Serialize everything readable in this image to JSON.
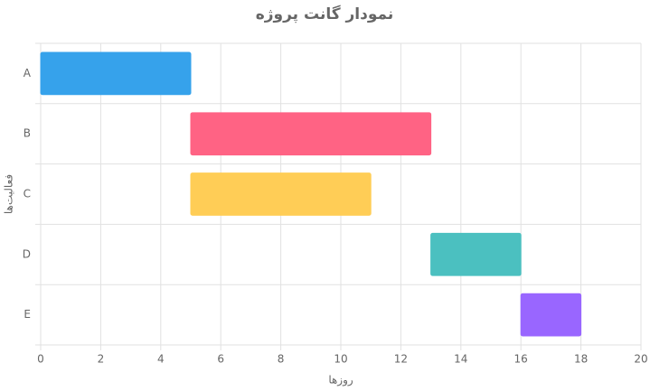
{
  "chart_data": {
    "type": "gantt",
    "title": "نمودار گانت پروژه",
    "x_label": "روزها",
    "y_label": "فعالیت‌ها",
    "categories": [
      "A",
      "B",
      "C",
      "D",
      "E"
    ],
    "start": [
      0,
      5,
      5,
      13,
      16
    ],
    "end": [
      5,
      13,
      11,
      16,
      18
    ],
    "colors": [
      "#36a2eb",
      "#ff6384",
      "#ffcd56",
      "#4bc0c0",
      "#9966ff"
    ],
    "xlim": [
      0,
      20
    ],
    "xticks": [
      0,
      2,
      4,
      6,
      8,
      10,
      12,
      14,
      16,
      18,
      20
    ],
    "grid": true
  }
}
